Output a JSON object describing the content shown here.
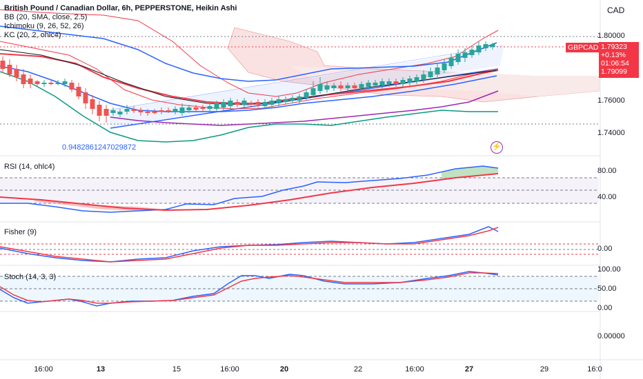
{
  "header": {
    "title_line": "British Pound / Canadian Dollar, 6h, PEPPERSTONE, Heikin Ashi",
    "indicators": [
      "BB (20, SMA, close, 2.5)",
      "Ichimoku (9, 26, 52, 26)",
      "KC (20, 2, ohlc4)"
    ]
  },
  "currency": "CAD",
  "price_axis": [
    "1.80000",
    "1.78000",
    "1.76000",
    "1.74000"
  ],
  "price_tags": {
    "symbol": "GBPCAD",
    "price": "1.79323",
    "change": "+0.13%",
    "countdown": "01:06:54",
    "other": "1.79099"
  },
  "annotation": "0.9482861247029872",
  "panes": {
    "rsi": {
      "label": "RSI (14, ohlc4)",
      "levels": [
        "80.00",
        "40.00"
      ]
    },
    "fisher": {
      "label": "Fisher (9)",
      "levels": [
        "0.00"
      ]
    },
    "stoch": {
      "label": "Stoch (14, 3, 3)",
      "levels": [
        "100.00",
        "50.00",
        "0.00"
      ]
    },
    "empty": {
      "levels": [
        "0.00000"
      ]
    }
  },
  "time_axis": [
    {
      "label": "16:00",
      "bold": false
    },
    {
      "label": "13",
      "bold": true
    },
    {
      "label": "15",
      "bold": false
    },
    {
      "label": "16:00",
      "bold": false
    },
    {
      "label": "20",
      "bold": true
    },
    {
      "label": "22",
      "bold": false
    },
    {
      "label": "16:00",
      "bold": false
    },
    {
      "label": "27",
      "bold": true
    },
    {
      "label": "29",
      "bold": false
    },
    {
      "label": "16:0",
      "bold": false
    }
  ],
  "colors": {
    "bull": "#26a69a",
    "bear": "#ef5350",
    "bb": "#f23645",
    "ichimoku_cloud": "#f7d2d2",
    "kc": "#2962ff",
    "rsi": "#2962ff",
    "rsi_ma": "#f23645",
    "purple": "#9c27b0",
    "teal": "#089981"
  }
}
